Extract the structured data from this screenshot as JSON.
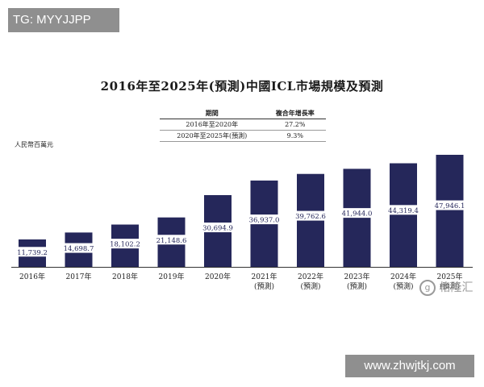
{
  "watermark_top": "TG: MYYJJPP",
  "watermark_bottom": "www.zhwjtkj.com",
  "logo_text": "格隆汇",
  "logo_mark": "g",
  "chart_data": {
    "type": "bar",
    "title": "2016年至2025年(預測)中國ICL市場規模及預測",
    "ylabel": "人民幣百萬元",
    "categories": [
      "2016年",
      "2017年",
      "2018年",
      "2019年",
      "2020年",
      "2021年",
      "2022年",
      "2023年",
      "2024年",
      "2025年"
    ],
    "category_notes": [
      "",
      "",
      "",
      "",
      "",
      "(預測)",
      "(預測)",
      "(預測)",
      "(預測)",
      "(預測)"
    ],
    "values": [
      11739.2,
      14698.7,
      18102.2,
      21148.6,
      30694.9,
      36937.0,
      39762.6,
      41944.0,
      44319.4,
      47946.1
    ],
    "value_labels": [
      "11,739.2",
      "14,698.7",
      "18,102.2",
      "21,148.6",
      "30,694.9",
      "36,937.0",
      "39,762.6",
      "41,944.0",
      "44,319.4",
      "47,946.1"
    ],
    "ylim": [
      0,
      50000
    ],
    "bar_color": "#25275a",
    "label_box_color": "#ffffff",
    "label_text_color": "#25275a",
    "grid": false,
    "legend": "none",
    "cagr_table": {
      "headers": [
        "期間",
        "複合年增長率"
      ],
      "rows": [
        [
          "2016年至2020年",
          "27.2%"
        ],
        [
          "2020年至2025年(預測)",
          "9.3%"
        ]
      ]
    }
  }
}
